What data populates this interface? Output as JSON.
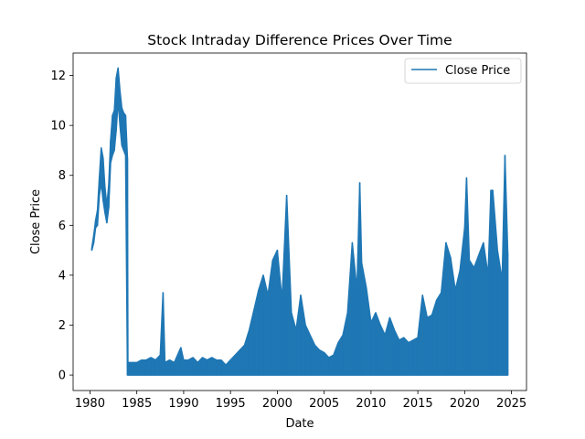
{
  "chart_data": {
    "type": "line",
    "title": "Stock Intraday Difference Prices Over Time",
    "xlabel": "Date",
    "ylabel": "Close Price",
    "xlim": [
      1978.2,
      2026.6
    ],
    "ylim": [
      -0.62,
      12.9
    ],
    "x_ticks": [
      1980,
      1985,
      1990,
      1995,
      2000,
      2005,
      2010,
      2015,
      2020,
      2025
    ],
    "y_ticks": [
      0,
      2,
      4,
      6,
      8,
      10,
      12
    ],
    "legend": {
      "position": "upper right",
      "entries": [
        "Close Price"
      ]
    },
    "grid": false,
    "series": [
      {
        "name": "Close Price",
        "color": "#1f77b4",
        "x": [
          1980.2,
          1980.4,
          1980.6,
          1980.8,
          1981.0,
          1981.2,
          1981.4,
          1981.6,
          1981.8,
          1982.0,
          1982.2,
          1982.4,
          1982.6,
          1982.8,
          1983.0,
          1983.2,
          1983.4,
          1983.6,
          1983.8,
          1984.0,
          1984.05,
          1984.1,
          1984.5,
          1985.0,
          1985.5,
          1986.0,
          1986.5,
          1987.0,
          1987.5,
          1987.8,
          1988.0,
          1988.5,
          1989.0,
          1989.7,
          1990.0,
          1990.5,
          1991.0,
          1991.5,
          1992.0,
          1992.5,
          1993.0,
          1993.5,
          1994.0,
          1994.5,
          1995.0,
          1995.5,
          1996.0,
          1996.5,
          1997.0,
          1997.5,
          1998.0,
          1998.5,
          1999.0,
          1999.5,
          2000.0,
          2000.5,
          2001.0,
          2001.5,
          2002.0,
          2002.5,
          2003.0,
          2003.5,
          2004.0,
          2004.5,
          2005.0,
          2005.5,
          2006.0,
          2006.5,
          2007.0,
          2007.5,
          2008.0,
          2008.5,
          2008.8,
          2009.0,
          2009.5,
          2010.0,
          2010.5,
          2011.0,
          2011.5,
          2012.0,
          2012.5,
          2013.0,
          2013.5,
          2014.0,
          2014.5,
          2015.0,
          2015.5,
          2016.0,
          2016.5,
          2017.0,
          2017.5,
          2018.0,
          2018.5,
          2019.0,
          2019.5,
          2020.0,
          2020.2,
          2020.5,
          2021.0,
          2021.5,
          2022.0,
          2022.5,
          2022.8,
          2023.0,
          2023.5,
          2024.0,
          2024.3,
          2024.6
        ],
        "high": [
          5.1,
          5.6,
          6.2,
          6.6,
          7.9,
          9.1,
          8.7,
          7.5,
          6.8,
          7.6,
          9.4,
          10.4,
          10.6,
          11.9,
          12.3,
          11.4,
          10.7,
          10.5,
          10.4,
          8.7,
          0.4,
          0.5,
          0.5,
          0.5,
          0.6,
          0.6,
          0.7,
          0.6,
          0.8,
          3.3,
          0.5,
          0.6,
          0.5,
          1.1,
          0.6,
          0.6,
          0.7,
          0.5,
          0.7,
          0.6,
          0.7,
          0.6,
          0.6,
          0.4,
          0.6,
          0.8,
          1.0,
          1.2,
          1.8,
          2.6,
          3.4,
          4.0,
          3.2,
          4.6,
          5.0,
          3.0,
          7.2,
          2.5,
          1.8,
          3.2,
          2.0,
          1.6,
          1.2,
          1.0,
          0.9,
          0.7,
          0.8,
          1.3,
          1.6,
          2.5,
          5.3,
          3.4,
          7.7,
          4.5,
          3.5,
          2.1,
          2.5,
          2.0,
          1.6,
          2.3,
          1.8,
          1.4,
          1.5,
          1.3,
          1.4,
          1.5,
          3.2,
          2.3,
          2.4,
          3.0,
          3.3,
          5.3,
          4.7,
          3.4,
          4.2,
          5.9,
          7.9,
          4.6,
          4.3,
          4.8,
          5.3,
          4.0,
          7.4,
          7.4,
          5.0,
          3.8,
          8.8,
          4.9
        ],
        "low": [
          5.0,
          5.3,
          5.9,
          6.0,
          7.2,
          7.7,
          7.0,
          6.5,
          6.1,
          6.7,
          8.5,
          8.8,
          9.0,
          9.8,
          11.0,
          10.0,
          9.2,
          9.0,
          8.8,
          0.0,
          0.0,
          0.0,
          0.0,
          0.0,
          0.0,
          0.0,
          0.0,
          0.0,
          0.0,
          0.0,
          0.0,
          0.0,
          0.0,
          0.0,
          0.0,
          0.0,
          0.0,
          0.0,
          0.0,
          0.0,
          0.0,
          0.0,
          0.0,
          0.0,
          0.0,
          0.0,
          0.0,
          0.0,
          0.0,
          0.0,
          0.0,
          0.0,
          0.0,
          0.0,
          0.0,
          0.0,
          0.0,
          0.0,
          0.0,
          0.0,
          0.0,
          0.0,
          0.0,
          0.0,
          0.0,
          0.0,
          0.0,
          0.0,
          0.0,
          0.0,
          0.0,
          0.0,
          0.0,
          0.0,
          0.0,
          0.0,
          0.0,
          0.0,
          0.0,
          0.0,
          0.0,
          0.0,
          0.0,
          0.0,
          0.0,
          0.0,
          0.0,
          0.0,
          0.0,
          0.0,
          0.0,
          0.0,
          0.0,
          0.0,
          0.0,
          0.0,
          0.0,
          0.0,
          0.0,
          0.0,
          0.0,
          0.0,
          0.0,
          0.0,
          0.0,
          0.0,
          0.0,
          0.0
        ]
      }
    ]
  }
}
